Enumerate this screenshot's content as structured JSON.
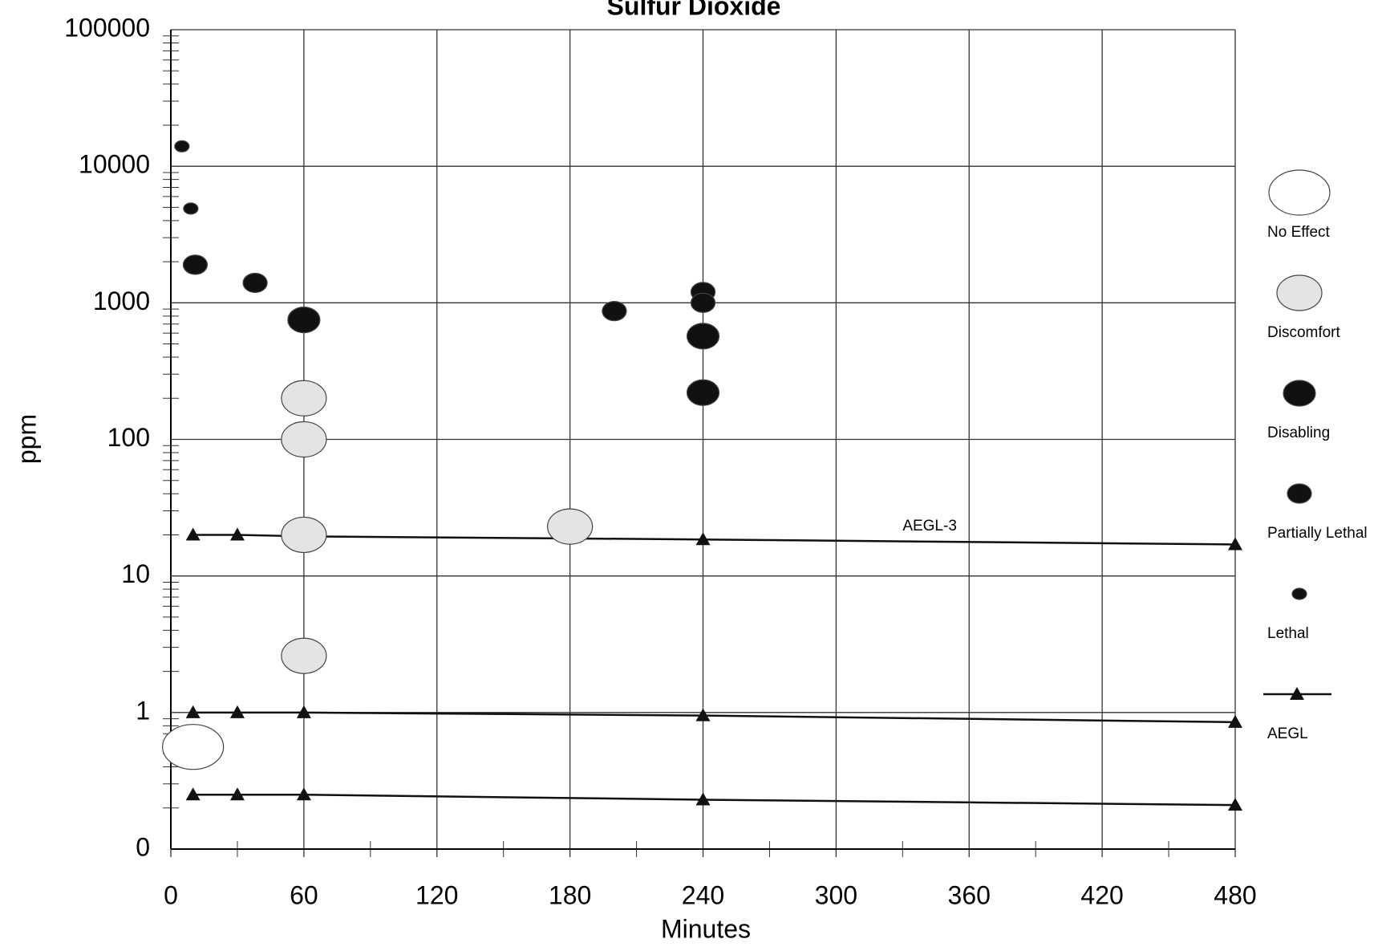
{
  "chart_data": {
    "type": "scatter",
    "title": "Sulfur Dioxide",
    "x_label": "Minutes",
    "y_label": "ppm",
    "log_y": true,
    "grid": true,
    "legend": "right",
    "xlim": [
      0,
      480
    ],
    "xticks": [
      0,
      60,
      120,
      180,
      240,
      300,
      360,
      420,
      480
    ],
    "ylim": [
      0.1,
      100000
    ],
    "yticks": [
      {
        "value": 0.1,
        "label": "0"
      },
      1,
      10,
      100,
      1000,
      10000,
      100000
    ],
    "series": [
      {
        "name": "No Effect",
        "color": "#ffffff",
        "x": [
          10
        ],
        "values": [
          0.56
        ]
      },
      {
        "name": "Discomfort",
        "color": "#e4e4e4",
        "x": [
          60,
          60,
          60,
          60,
          180
        ],
        "values": [
          200,
          100,
          20,
          2.6,
          23
        ]
      },
      {
        "name": "Disabling",
        "color": "#111111",
        "x": [
          60,
          240,
          240
        ],
        "values": [
          750,
          570,
          220
        ]
      },
      {
        "name": "Partially Lethal",
        "color": "#111111",
        "x": [
          11,
          38,
          200,
          240,
          240
        ],
        "values": [
          1900,
          1400,
          870,
          1200,
          1000
        ]
      },
      {
        "name": "Lethal",
        "color": "#111111",
        "x": [
          5,
          9
        ],
        "values": [
          14000,
          4900
        ]
      }
    ],
    "aegl": {
      "name": "AEGL",
      "color": "#111111",
      "x": [
        10,
        30,
        60,
        240,
        480
      ],
      "levels": [
        [
          20,
          20,
          19.5,
          18.5,
          17
        ],
        [
          1,
          1,
          1,
          0.95,
          0.85
        ],
        [
          0.25,
          0.25,
          0.25,
          0.23,
          0.21
        ]
      ]
    },
    "annotation": {
      "text": "AEGL-3",
      "x": 330,
      "y": 23
    }
  }
}
